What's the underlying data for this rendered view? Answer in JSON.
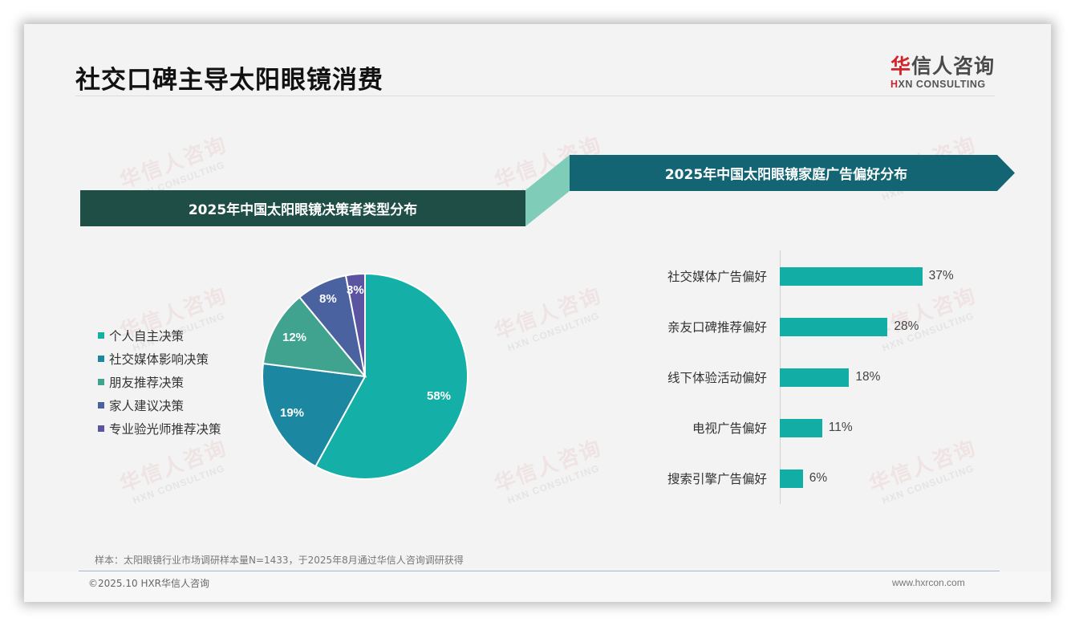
{
  "header": {
    "title": "社交口碑主导太阳眼镜消费",
    "logo": {
      "cn_red": "华",
      "cn_rest": "信人咨询",
      "en_red": "H",
      "en_rest": "XN CONSULTING"
    }
  },
  "watermark": {
    "cn": "华信人咨询",
    "en": "HXN CONSULTING"
  },
  "banners": {
    "left": "2025年中国太阳眼镜决策者类型分布",
    "right": "2025年中国太阳眼镜家庭广告偏好分布"
  },
  "colors": {
    "banner_left": "#1f4e47",
    "connector": "#7fcdb9",
    "banner_right": "#136574",
    "bar": "#12ada4"
  },
  "chart_data": [
    {
      "type": "pie",
      "title": "2025年中国太阳眼镜决策者类型分布",
      "categories": [
        "个人自主决策",
        "社交媒体影响决策",
        "朋友推荐决策",
        "家人建议决策",
        "专业验光师推荐决策"
      ],
      "values": [
        58,
        19,
        12,
        8,
        3
      ],
      "labels": [
        "58%",
        "19%",
        "12%",
        "8%",
        "3%"
      ],
      "colors": [
        "#14afa6",
        "#1b87a0",
        "#3fa38f",
        "#4b62a0",
        "#5b54a0"
      ],
      "legend_position": "left"
    },
    {
      "type": "bar",
      "orientation": "horizontal",
      "title": "2025年中国太阳眼镜家庭广告偏好分布",
      "categories": [
        "社交媒体广告偏好",
        "亲友口碑推荐偏好",
        "线下体验活动偏好",
        "电视广告偏好",
        "搜索引擎广告偏好"
      ],
      "values": [
        37,
        28,
        18,
        11,
        6
      ],
      "labels": [
        "37%",
        "28%",
        "18%",
        "11%",
        "6%"
      ],
      "xlabel": "",
      "ylabel": "",
      "grid": false
    }
  ],
  "footer": {
    "note": "样本：太阳眼镜行业市场调研样本量N=1433，于2025年8月通过华信人咨询调研获得",
    "copyright": "©2025.10 HXR华信人咨询",
    "website": "www.hxrcon.com"
  }
}
